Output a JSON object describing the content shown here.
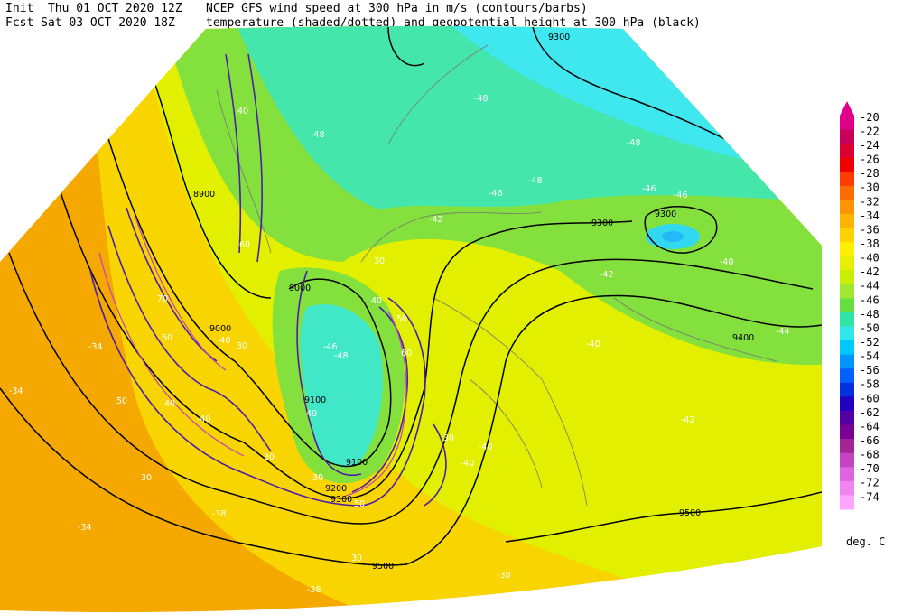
{
  "header": {
    "init": "Init  Thu 01 OCT 2020 12Z",
    "fcst": "Fcst Sat 03 OCT 2020 18Z",
    "line1": "NCEP GFS wind speed at 300 hPa in m/s (contours/barbs)",
    "line2": "temperature (shaded/dotted) and geopotential height at 300 hPa (black)"
  },
  "map": {
    "height_labels": [
      "9300",
      "8900",
      "9300",
      "9300",
      "9000",
      "9000",
      "9100",
      "9100",
      "9200",
      "9300",
      "9400",
      "9500",
      "9500"
    ],
    "temperature_labels": [
      "-48",
      "-48",
      "-48",
      "-46",
      "-46",
      "-46",
      "-42",
      "-42",
      "-40",
      "-44",
      "-42",
      "-40",
      "-46",
      "-48",
      "-40",
      "-40",
      "-40",
      "-40",
      "-34",
      "-34",
      "-38",
      "-38",
      "-38",
      "-34",
      "-48"
    ],
    "wind_labels": [
      "40",
      "60",
      "70",
      "60",
      "50",
      "40",
      "30",
      "30",
      "30",
      "30",
      "30",
      "50",
      "60",
      "50",
      "40",
      "30",
      "30",
      "40"
    ]
  },
  "colorbar": {
    "entries": [
      {
        "label": "-20",
        "color": "#e0008a"
      },
      {
        "label": "-22",
        "color": "#c8005c"
      },
      {
        "label": "-24",
        "color": "#dc0030"
      },
      {
        "label": "-26",
        "color": "#f00000"
      },
      {
        "label": "-28",
        "color": "#ff3c00"
      },
      {
        "label": "-30",
        "color": "#ff6c00"
      },
      {
        "label": "-32",
        "color": "#ff9400"
      },
      {
        "label": "-34",
        "color": "#ffb400"
      },
      {
        "label": "-36",
        "color": "#ffd200"
      },
      {
        "label": "-38",
        "color": "#ffee00"
      },
      {
        "label": "-40",
        "color": "#e6f000"
      },
      {
        "label": "-42",
        "color": "#c8ee00"
      },
      {
        "label": "-44",
        "color": "#a0e830"
      },
      {
        "label": "-46",
        "color": "#64e040"
      },
      {
        "label": "-48",
        "color": "#30e4a4"
      },
      {
        "label": "-50",
        "color": "#30e8ec"
      },
      {
        "label": "-52",
        "color": "#00c8ff"
      },
      {
        "label": "-54",
        "color": "#0094ff"
      },
      {
        "label": "-56",
        "color": "#0060ff"
      },
      {
        "label": "-58",
        "color": "#0030e0"
      },
      {
        "label": "-60",
        "color": "#2400c0"
      },
      {
        "label": "-62",
        "color": "#5400a4"
      },
      {
        "label": "-64",
        "color": "#7c0094"
      },
      {
        "label": "-66",
        "color": "#a42494"
      },
      {
        "label": "-68",
        "color": "#c444c4"
      },
      {
        "label": "-70",
        "color": "#e064e0"
      },
      {
        "label": "-72",
        "color": "#f084f0"
      },
      {
        "label": "-74",
        "color": "#ffa4ff"
      }
    ],
    "units": "deg. C"
  }
}
